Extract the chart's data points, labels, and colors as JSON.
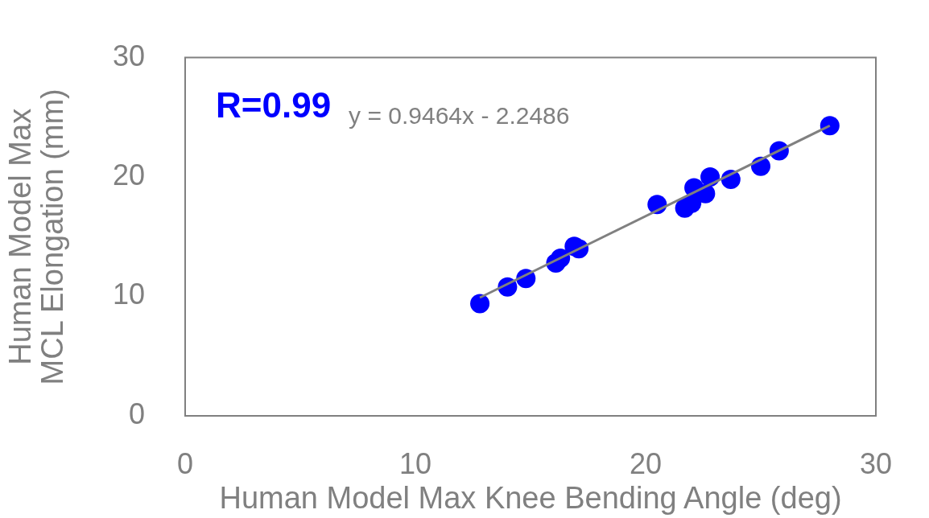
{
  "chart_data": {
    "type": "scatter",
    "xlabel": "Human Model Max Knee Bending Angle (deg)",
    "ylabel": "Human Model Max\nMCL Elongation (mm)",
    "annotations": [
      "R=0.99",
      "y = 0.9464x - 2.2486"
    ],
    "xlim": [
      0,
      30
    ],
    "xticks": [
      0,
      10,
      20,
      30
    ],
    "ylim": [
      0,
      30
    ],
    "yticks": [
      0,
      10,
      20,
      30
    ],
    "grid": false,
    "legend": false,
    "marker": "circle",
    "series": [
      {
        "color": "#0000ff",
        "x": [
          12.8,
          14.0,
          14.8,
          16.1,
          16.3,
          16.9,
          17.1,
          20.5,
          21.7,
          22.0,
          22.1,
          22.6,
          22.8,
          23.7,
          25.0,
          25.8,
          28.0
        ],
        "values": [
          9.4,
          10.8,
          11.5,
          12.8,
          13.2,
          14.2,
          14.0,
          17.7,
          17.4,
          17.8,
          19.1,
          18.6,
          20.0,
          19.8,
          20.9,
          22.2,
          24.3
        ]
      },
      {
        "type": "line",
        "color": "#808080",
        "marker": "none",
        "x": [
          12.8,
          28.0
        ],
        "values": [
          9.9,
          24.3
        ]
      }
    ]
  }
}
